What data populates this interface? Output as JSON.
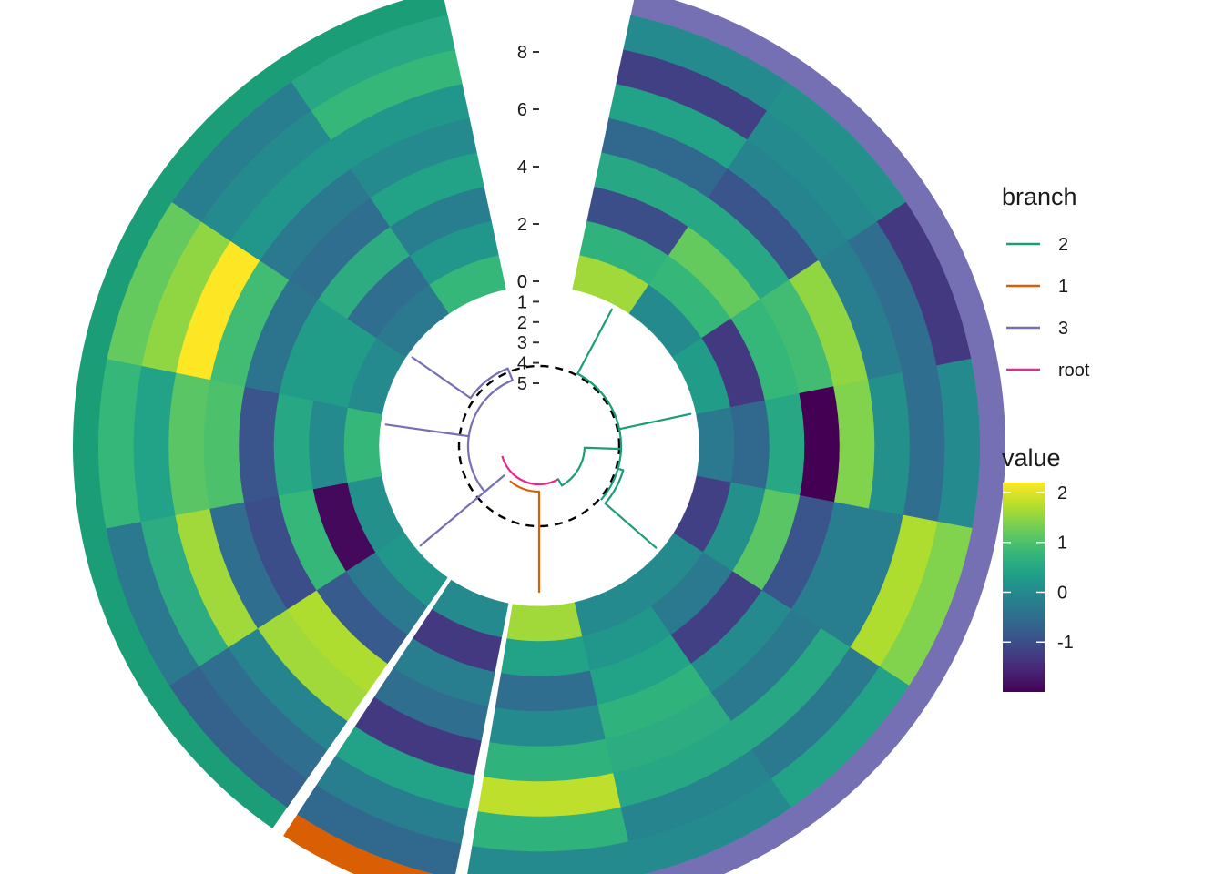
{
  "chart_data": {
    "type": "heatmap",
    "title": "",
    "layout": "circular dendrogram with heatmap rings",
    "sector_order": [
      "3",
      "1",
      "2"
    ],
    "sector_groups": {
      "3": {
        "branch": "3",
        "columns": 8
      },
      "1": {
        "branch": "1",
        "columns": 1
      },
      "2": {
        "branch": "2",
        "columns": 6
      }
    },
    "ring_count": 8,
    "colorscale": "viridis",
    "value_range": [
      -2,
      2.2
    ],
    "heatmap_values": [
      [
        1.6,
        0.7,
        -1.0,
        0.5,
        -0.6,
        0.4,
        -1.2,
        0.0
      ],
      [
        0.0,
        0.8,
        1.2,
        0.5,
        -0.9,
        -0.1,
        0.0,
        0.1
      ],
      [
        0.3,
        -1.3,
        0.8,
        0.9,
        1.5,
        -0.2,
        -0.5,
        -1.3
      ],
      [
        -0.3,
        -0.6,
        0.5,
        -2.0,
        1.4,
        0.1,
        -0.5,
        0.0
      ],
      [
        -1.2,
        0.1,
        1.1,
        -0.9,
        -0.2,
        -0.2,
        1.7,
        1.4
      ],
      [
        0.0,
        -0.3,
        -1.2,
        0.0,
        -0.3,
        0.5,
        -0.3,
        0.4
      ],
      [
        0.0,
        0.2,
        0.4,
        0.7,
        0.6,
        0.5,
        -0.1,
        0.0
      ],
      [
        1.6,
        0.4,
        -0.5,
        0.0,
        0.7,
        1.8,
        0.7,
        0.0
      ],
      [
        0.0,
        -1.3,
        -0.2,
        -0.5,
        -1.3,
        0.4,
        -0.2,
        -0.6
      ],
      [
        0.2,
        -0.3,
        -0.8,
        1.7,
        1.6,
        -0.1,
        -0.5,
        -0.7
      ],
      [
        0.1,
        -1.9,
        0.8,
        -1.0,
        -0.5,
        1.6,
        0.6,
        -0.3
      ],
      [
        0.8,
        0.0,
        0.5,
        -0.9,
        1.0,
        1.1,
        0.4,
        0.8
      ],
      [
        0.0,
        0.3,
        0.3,
        -0.4,
        0.9,
        2.2,
        1.5,
        1.2
      ],
      [
        -0.3,
        -0.5,
        0.6,
        -0.5,
        -0.3,
        0.2,
        0.0,
        -0.2
      ],
      [
        0.8,
        0.2,
        -0.2,
        0.4,
        0.0,
        0.2,
        0.8,
        0.5
      ]
    ],
    "inner_axis": {
      "ticks": [
        "0",
        "1",
        "2",
        "3",
        "4",
        "5"
      ]
    },
    "outer_axis": {
      "ticks": [
        "0",
        "2",
        "4",
        "6",
        "8"
      ]
    },
    "dendrogram": {
      "root": {
        "color_key": "root"
      },
      "clusters": [
        "2",
        "1",
        "3"
      ],
      "reference_circle": "dashed"
    },
    "legend": {
      "branch": {
        "title": "branch",
        "entries": [
          {
            "label": "2",
            "color": "#1b9e77"
          },
          {
            "label": "1",
            "color": "#d95f02"
          },
          {
            "label": "3",
            "color": "#7570b3"
          },
          {
            "label": "root",
            "color": "#e7298a"
          }
        ]
      },
      "value": {
        "title": "value",
        "ticks": [
          2,
          1,
          0,
          -1
        ]
      }
    }
  }
}
